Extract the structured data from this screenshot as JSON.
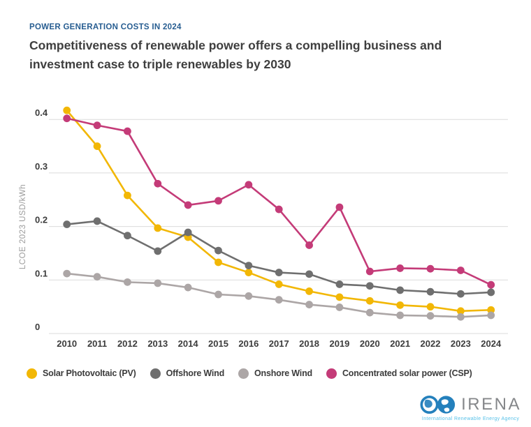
{
  "header": {
    "eyebrow": "POWER GENERATION COSTS IN 2024",
    "title_lines": [
      "Competitiveness of renewable power offers a compelling business and",
      "investment case to triple renewables by 2030"
    ]
  },
  "chart_data": {
    "type": "line",
    "title": "",
    "xlabel": "",
    "ylabel": "LCOE 2023 USD/kWh",
    "x": [
      2010,
      2011,
      2012,
      2013,
      2014,
      2015,
      2016,
      2017,
      2018,
      2019,
      2020,
      2021,
      2022,
      2023,
      2024
    ],
    "ylim": [
      0,
      0.45
    ],
    "yticks": [
      0,
      0.1,
      0.2,
      0.3,
      0.4
    ],
    "grid": true,
    "legend_position": "bottom",
    "series": [
      {
        "name": "Solar Photovoltaic (PV)",
        "color": "#F2B705",
        "values": [
          0.417,
          0.35,
          0.258,
          0.197,
          0.18,
          0.133,
          0.114,
          0.092,
          0.079,
          0.068,
          0.061,
          0.053,
          0.05,
          0.042,
          0.044
        ]
      },
      {
        "name": "Offshore Wind",
        "color": "#6F6F6F",
        "values": [
          0.204,
          0.21,
          0.183,
          0.154,
          0.189,
          0.155,
          0.127,
          0.114,
          0.111,
          0.092,
          0.089,
          0.081,
          0.078,
          0.074,
          0.077
        ]
      },
      {
        "name": "Onshore Wind",
        "color": "#ACA6A6",
        "values": [
          0.112,
          0.106,
          0.096,
          0.094,
          0.086,
          0.073,
          0.07,
          0.063,
          0.054,
          0.049,
          0.039,
          0.034,
          0.033,
          0.031,
          0.034
        ]
      },
      {
        "name": "Concentrated solar power (CSP)",
        "color": "#C43B78",
        "values": [
          0.402,
          0.389,
          0.378,
          0.28,
          0.24,
          0.248,
          0.278,
          0.232,
          0.165,
          0.236,
          0.116,
          0.122,
          0.121,
          0.118,
          0.091
        ]
      }
    ]
  },
  "footer": {
    "brand": "IRENA",
    "tagline": "International Renewable Energy Agency"
  },
  "colors": {
    "eyebrow_blue": "#275D91",
    "title_gray": "#3E3E3E",
    "tick_text": "#3C3C3C",
    "gridline": "#DBDBDB",
    "axis_title": "#9C9C9C",
    "logo_blue": "#2480BC",
    "tagline_blue": "#54C0E8",
    "brand_gray": "#85878A"
  }
}
